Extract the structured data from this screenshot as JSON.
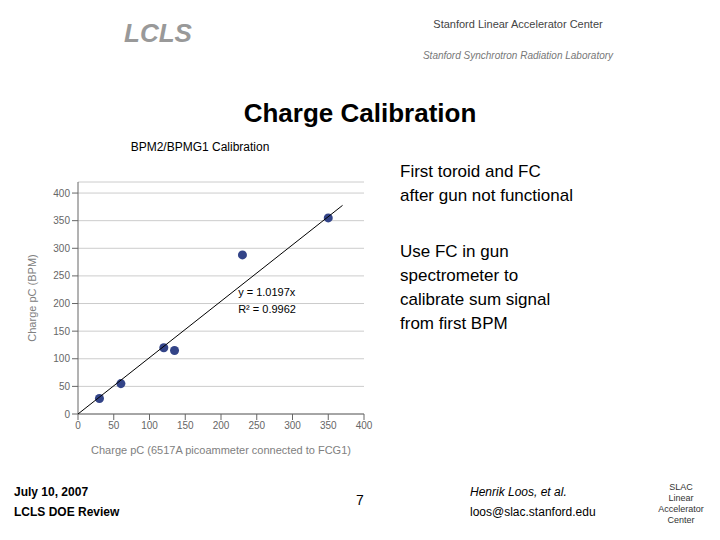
{
  "chart_data": {
    "type": "scatter",
    "title": "BPM2/BPMG1 Calibration",
    "x_label": "Charge pC (6517A picoammeter connected to FCG1)",
    "y_label": "Charge pC (BPM)",
    "xlim": [
      0,
      400
    ],
    "ylim": [
      0,
      420
    ],
    "xticks": [
      0,
      50,
      100,
      150,
      200,
      250,
      300,
      350,
      400
    ],
    "yticks": [
      0,
      50,
      100,
      150,
      200,
      250,
      300,
      350,
      400
    ],
    "grid": "y",
    "series": [
      {
        "type": "scatter",
        "color": "#334488",
        "marker": "circle",
        "x": [
          30,
          60,
          120,
          135,
          230,
          350
        ],
        "values": [
          28,
          55,
          120,
          115,
          288,
          355
        ]
      },
      {
        "type": "line",
        "color": "#000000",
        "line_style": "solid",
        "x": [
          0,
          370
        ],
        "values": [
          0,
          377.7
        ]
      }
    ],
    "annotations": [
      "y = 1.0197x\nR² = 0.9962",
      "Charge Calibration",
      "First toroid and FC",
      "after gun not functional",
      "Use FC in gun",
      "spectrometer to",
      "calibrate sum signal",
      "from first BPM",
      "LCLS",
      "Stanford Linear Accelerator Center",
      "Stanford Synchrotron Radiation Laboratory",
      "July 10, 2007",
      "LCLS DOE Review",
      "7",
      "Henrik Loos, et al.",
      "loos@slac.stanford.edu",
      "SLAC\nLinear\nAccelerator\nCenter"
    ]
  }
}
